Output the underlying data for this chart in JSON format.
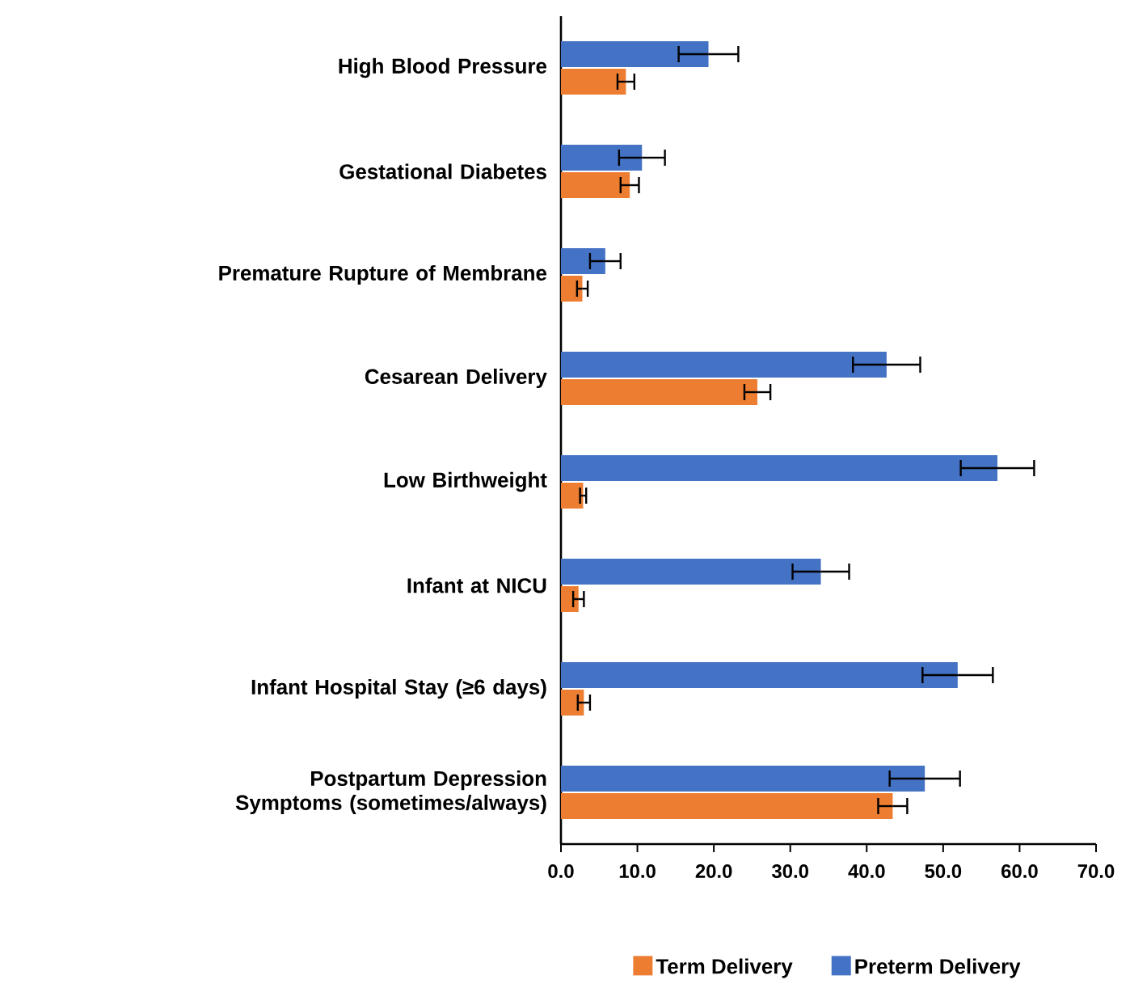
{
  "chart_data": {
    "type": "bar",
    "orientation": "horizontal",
    "categories": [
      "High Blood Pressure",
      "Gestational Diabetes",
      "Premature Rupture of Membrane",
      "Cesarean Delivery",
      "Low Birthweight",
      "Infant at NICU",
      "Infant Hospital Stay (≥6 days)",
      "Postpartum Depression Symptoms (sometimes/always)"
    ],
    "series": [
      {
        "name": "Term Delivery",
        "color": "#ed7d31",
        "values": [
          8.5,
          9.0,
          2.8,
          25.7,
          2.9,
          2.3,
          3.0,
          43.4
        ],
        "errors": [
          1.1,
          1.2,
          0.7,
          1.7,
          0.4,
          0.7,
          0.8,
          1.9
        ]
      },
      {
        "name": "Preterm Delivery",
        "color": "#4472c4",
        "values": [
          19.3,
          10.6,
          5.8,
          42.6,
          57.1,
          34.0,
          51.9,
          47.6
        ],
        "errors": [
          3.9,
          3.0,
          2.0,
          4.4,
          4.8,
          3.7,
          4.6,
          4.6
        ]
      }
    ],
    "xlim": [
      0,
      70
    ],
    "xticks": [
      {
        "value": 0,
        "label": "0.0"
      },
      {
        "value": 10,
        "label": "10.0"
      },
      {
        "value": 20,
        "label": "20.0"
      },
      {
        "value": 30,
        "label": "30.0"
      },
      {
        "value": 40,
        "label": "40.0"
      },
      {
        "value": 50,
        "label": "50.0"
      },
      {
        "value": 60,
        "label": "60.0"
      },
      {
        "value": 70,
        "label": "70.0"
      }
    ],
    "grid": false,
    "legend": "bottom"
  }
}
